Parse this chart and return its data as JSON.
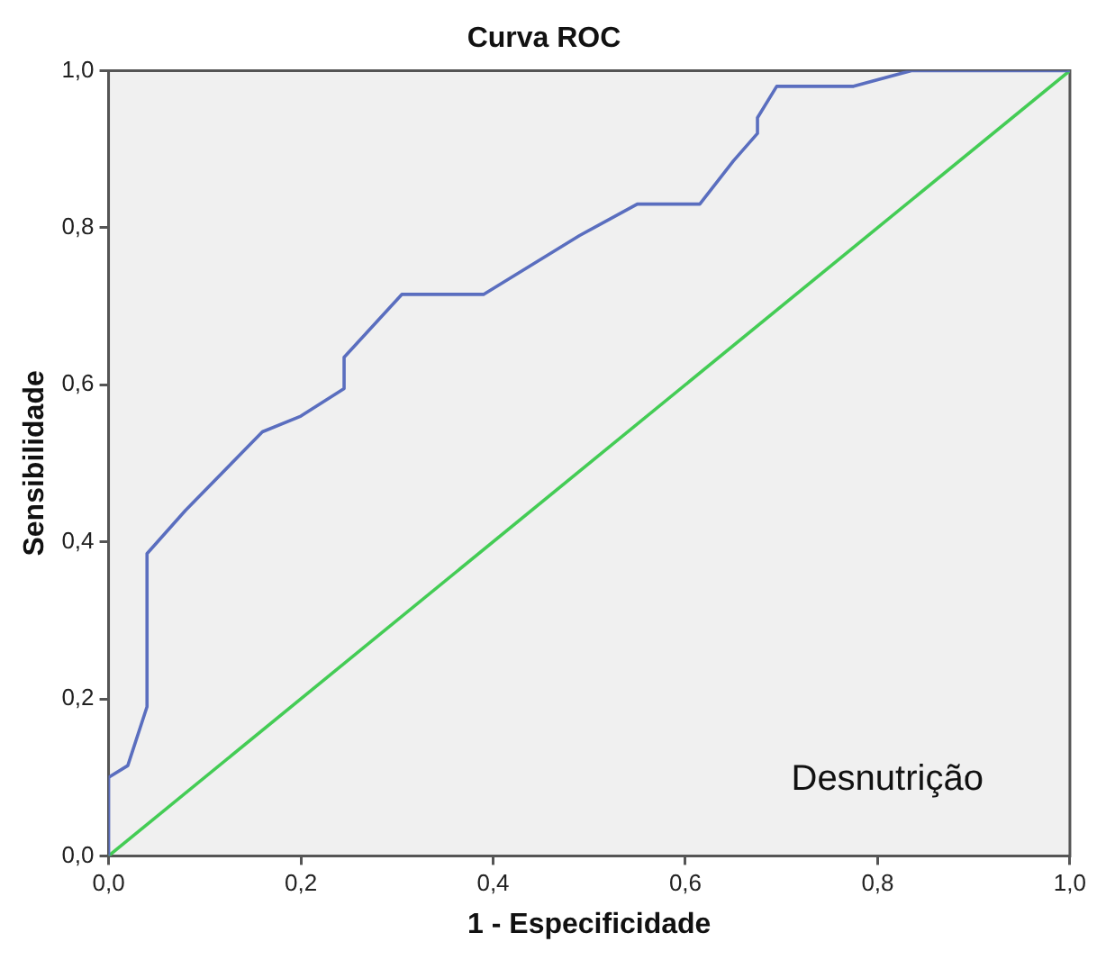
{
  "chart_data": {
    "type": "line",
    "title": "Curva ROC",
    "xlabel": "1 - Especificidade",
    "ylabel": "Sensibilidade",
    "annotations": [
      "Desnutrição"
    ],
    "xlim": [
      0,
      1
    ],
    "ylim": [
      0,
      1
    ],
    "xticks": [
      {
        "value": 0,
        "label": "0,0"
      },
      {
        "value": 0.2,
        "label": "0,2"
      },
      {
        "value": 0.4,
        "label": "0,4"
      },
      {
        "value": 0.6,
        "label": "0,6"
      },
      {
        "value": 0.8,
        "label": "0,8"
      },
      {
        "value": 1,
        "label": "1,0"
      }
    ],
    "yticks": [
      {
        "value": 0,
        "label": "0,0"
      },
      {
        "value": 0.2,
        "label": "0,2"
      },
      {
        "value": 0.4,
        "label": "0,4"
      },
      {
        "value": 0.6,
        "label": "0,6"
      },
      {
        "value": 0.8,
        "label": "0,8"
      },
      {
        "value": 1,
        "label": "1,0"
      }
    ],
    "grid": false,
    "legend": false,
    "marker": "none",
    "line_style": "solid",
    "series": [
      {
        "color": "#5a6ebf",
        "x": [
          0,
          0,
          0.02,
          0.04,
          0.04,
          0.08,
          0.16,
          0.2,
          0.245,
          0.245,
          0.305,
          0.39,
          0.49,
          0.55,
          0.615,
          0.65,
          0.675,
          0.675,
          0.695,
          0.775,
          0.835,
          1
        ],
        "values": [
          0,
          0.1,
          0.115,
          0.19,
          0.385,
          0.44,
          0.54,
          0.56,
          0.595,
          0.635,
          0.715,
          0.715,
          0.79,
          0.83,
          0.83,
          0.885,
          0.92,
          0.94,
          0.98,
          0.98,
          1,
          1
        ]
      },
      {
        "color": "#44cc55",
        "x": [
          0,
          1
        ],
        "values": [
          0,
          1
        ]
      }
    ]
  }
}
